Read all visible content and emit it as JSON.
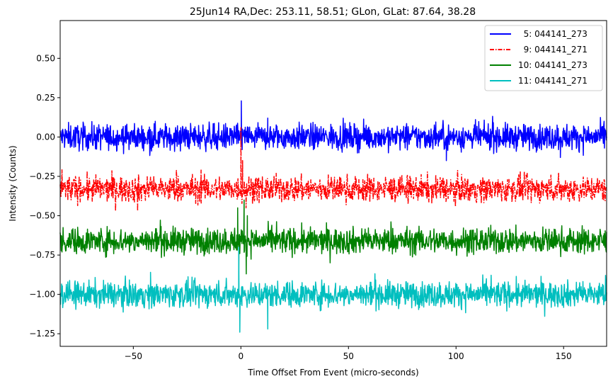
{
  "chart_data": {
    "type": "line",
    "title": "25Jun14 RA,Dec:  253.11,  58.51; GLon, GLat:   87.64,  38.28",
    "xlabel": "Time Offset From Event (micro-seconds)",
    "ylabel": "Intensity (Counts)",
    "xlim": [
      -84,
      170
    ],
    "ylim": [
      -1.33,
      0.74
    ],
    "xticks": [
      -50,
      0,
      50,
      100,
      150
    ],
    "xtick_labels": [
      "−50",
      "0",
      "50",
      "100",
      "150"
    ],
    "yticks": [
      0.5,
      0.25,
      0.0,
      -0.25,
      -0.5,
      -0.75,
      -1.0,
      -1.25
    ],
    "ytick_labels": [
      "0.50",
      "0.25",
      "0.00",
      "−0.25",
      "−0.50",
      "−0.75",
      "−1.00",
      "−1.25"
    ],
    "grid": false,
    "legend_position": "top-right",
    "series": [
      {
        "name": "  5: 044141_273",
        "label": "  5: 044141_273",
        "color": "#0000ff",
        "style": "solid",
        "baseline": 0.0,
        "noise": 0.045,
        "features": [
          {
            "x": 0.2,
            "value": 0.23
          },
          {
            "x": 0.6,
            "value": -0.08
          },
          {
            "x": 12.5,
            "value": 0.12
          },
          {
            "x": 95.5,
            "value": -0.15
          },
          {
            "x": 148.5,
            "value": -0.13
          }
        ]
      },
      {
        "name": "  9: 044141_271",
        "label": "  9: 044141_271",
        "color": "#ff0000",
        "style": "dashdot",
        "baseline": -0.33,
        "noise": 0.045,
        "features": [
          {
            "x": 0.0,
            "value": 0.06
          },
          {
            "x": 0.8,
            "value": -0.15
          },
          {
            "x": 1.6,
            "value": -0.28
          },
          {
            "x": 2.4,
            "value": -0.45
          },
          {
            "x": -48.0,
            "value": -0.47
          },
          {
            "x": -18.5,
            "value": -0.21
          }
        ]
      },
      {
        "name": "10: 044141_273",
        "label": "10: 044141_273",
        "color": "#008000",
        "style": "solid",
        "baseline": -0.66,
        "noise": 0.045,
        "features": [
          {
            "x": -1.5,
            "value": -0.45
          },
          {
            "x": -1.0,
            "value": -0.85
          },
          {
            "x": 1.5,
            "value": -0.4
          },
          {
            "x": 2.5,
            "value": -0.87
          },
          {
            "x": 3.0,
            "value": -0.5
          }
        ]
      },
      {
        "name": "11: 044141_271",
        "label": "11: 044141_271",
        "color": "#00bfbf",
        "style": "solid",
        "baseline": -1.0,
        "noise": 0.045,
        "features": [
          {
            "x": -1.0,
            "value": -0.7
          },
          {
            "x": -0.5,
            "value": -1.24
          },
          {
            "x": 0.5,
            "value": -0.95
          },
          {
            "x": 12.5,
            "value": -1.22
          },
          {
            "x": -42.0,
            "value": -0.86
          }
        ]
      }
    ]
  }
}
